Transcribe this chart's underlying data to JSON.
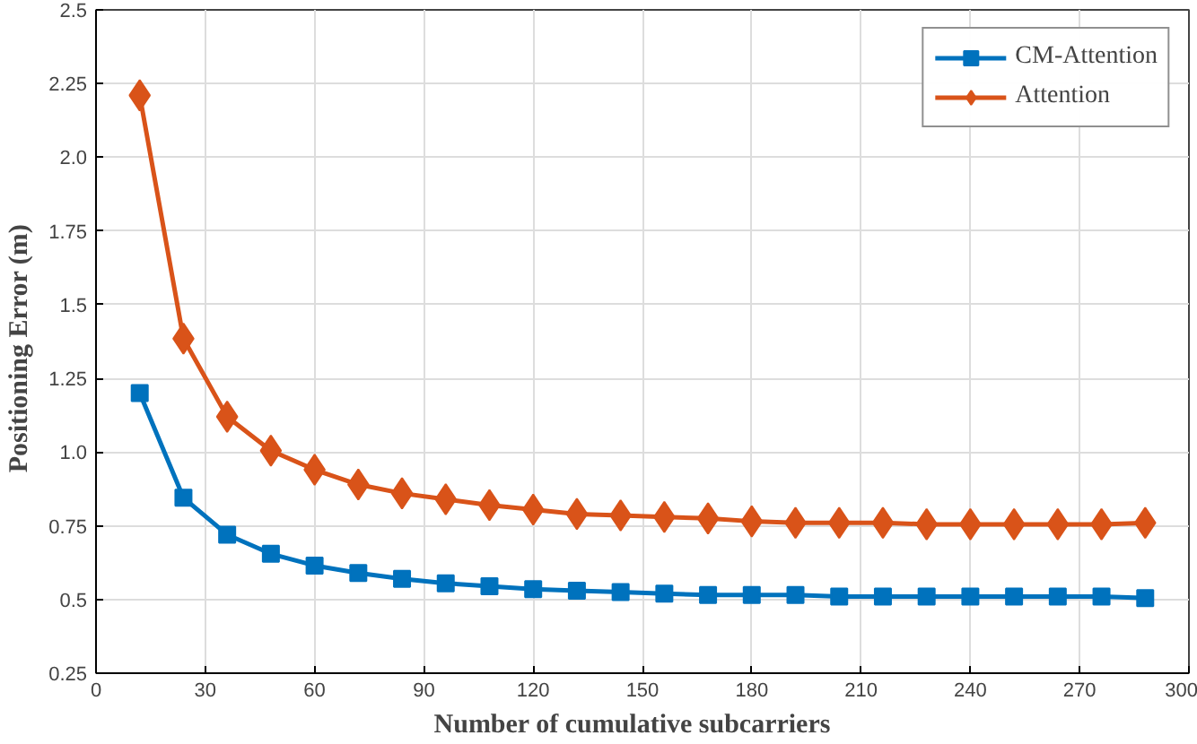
{
  "chart_data": {
    "type": "line",
    "xlabel": "Number  of  cumulative  subcarriers",
    "ylabel": "Positioning  Error  (m)",
    "x": [
      12,
      24,
      36,
      48,
      60,
      72,
      84,
      96,
      108,
      120,
      132,
      144,
      156,
      168,
      180,
      192,
      204,
      216,
      228,
      240,
      252,
      264,
      276,
      288
    ],
    "series": [
      {
        "name": "CM-Attention",
        "color": "#0072bd",
        "marker": "square",
        "values": [
          1.2,
          0.845,
          0.72,
          0.655,
          0.615,
          0.59,
          0.57,
          0.555,
          0.545,
          0.535,
          0.53,
          0.525,
          0.52,
          0.515,
          0.515,
          0.515,
          0.51,
          0.51,
          0.51,
          0.51,
          0.51,
          0.51,
          0.51,
          0.505
        ]
      },
      {
        "name": "Attention",
        "color": "#d95319",
        "marker": "diamond",
        "values": [
          2.21,
          1.385,
          1.12,
          1.005,
          0.94,
          0.89,
          0.86,
          0.84,
          0.82,
          0.805,
          0.79,
          0.785,
          0.78,
          0.775,
          0.765,
          0.76,
          0.76,
          0.76,
          0.755,
          0.755,
          0.755,
          0.755,
          0.755,
          0.76
        ]
      }
    ],
    "xlim": [
      0,
      300
    ],
    "xticks": [
      0,
      30,
      60,
      90,
      120,
      150,
      180,
      210,
      240,
      270,
      300
    ],
    "ylim": [
      0.25,
      2.5
    ],
    "yticks": [
      0.25,
      0.5,
      0.75,
      {
        "value": 1,
        "label": "1.0"
      },
      1.25,
      1.5,
      1.75,
      {
        "value": 2,
        "label": "2.0"
      },
      2.25,
      2.5
    ],
    "grid": true,
    "legend": "top right",
    "line_style": "solid"
  }
}
